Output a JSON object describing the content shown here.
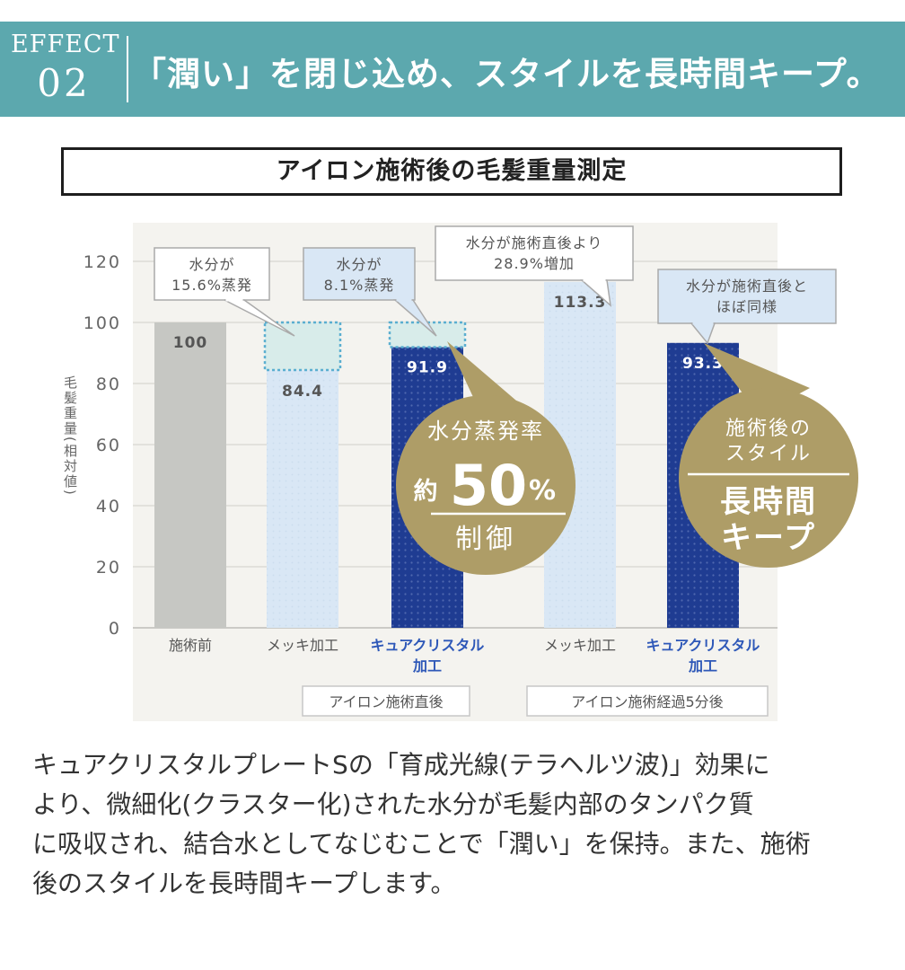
{
  "header": {
    "effect_word": "EFFECT",
    "effect_number": "02",
    "headline": "「潤い」を閉じ込め、スタイルを長時間キープ。"
  },
  "colors": {
    "teal": "#5ca8ae",
    "gray_bar": "#c6c7c3",
    "light_blue_bar": "#d9e7f5",
    "navy_bar": "#1f3c92",
    "gold": "#ae9d67",
    "callout_box": "#d9e7f5"
  },
  "chart_data": {
    "type": "bar",
    "title": "アイロン施術後の毛髪重量測定",
    "ylabel": "毛髪重量(相対値)",
    "ylim": [
      0,
      130
    ],
    "yticks": [
      "0",
      "20",
      "40",
      "60",
      "80",
      "100",
      "120"
    ],
    "grid": true,
    "bars": [
      {
        "label": "施術前",
        "value": 100,
        "value_label": "100",
        "style": "gray"
      },
      {
        "label": "メッキ加工",
        "value": 84.4,
        "value_label": "84.4",
        "style": "light",
        "lost_from": 100
      },
      {
        "label": "キュアクリスタル\n加工",
        "value": 91.9,
        "value_label": "91.9",
        "style": "navy",
        "lost_from": 100
      },
      {
        "label": "メッキ加工",
        "value": 113.3,
        "value_label": "113.3",
        "style": "light"
      },
      {
        "label": "キュアクリスタル\n加工",
        "value": 93.3,
        "value_label": "93.3",
        "style": "navy"
      }
    ],
    "groups": [
      {
        "label": "アイロン施術直後",
        "bars": [
          1,
          2
        ]
      },
      {
        "label": "アイロン施術経過5分後",
        "bars": [
          3,
          4
        ]
      }
    ],
    "callouts": [
      {
        "text": "水分が\n15.6%蒸発",
        "bar": 1
      },
      {
        "text": "水分が\n8.1%蒸発",
        "bar": 2
      },
      {
        "text": "水分が施術直後より\n28.9%増加",
        "bar": 3
      },
      {
        "text": "水分が施術直後と\nほぼ同様",
        "bar": 4
      }
    ],
    "badges": [
      {
        "line1": "水分蒸発率",
        "prefix": "約",
        "number": "50",
        "unit": "%",
        "line3": "制御"
      },
      {
        "line1": "施術後の",
        "line2": "スタイル",
        "line3": "長時間",
        "line4": "キープ"
      }
    ]
  },
  "body_text": [
    "キュアクリスタルプレートSの「育成光線(テラヘルツ波)」効果に",
    "より、微細化(クラスター化)された水分が毛髪内部のタンパク質",
    "に吸収され、結合水としてなじむことで「潤い」を保持。また、施術",
    "後のスタイルを長時間キープします。"
  ]
}
